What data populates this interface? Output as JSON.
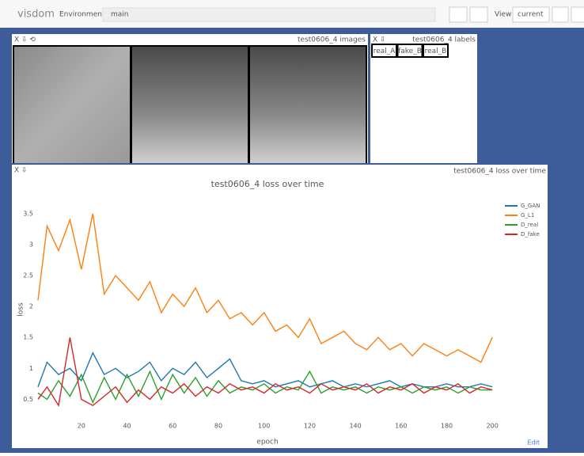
{
  "header": {
    "brand": "visdom",
    "env_label": "Environment",
    "env_value": "main",
    "view_label": "View",
    "view_value": "current"
  },
  "images_pane": {
    "title": "test0606_4 images"
  },
  "labels_pane": {
    "title": "test0606_4 labels",
    "labels": [
      "real_A",
      "fake_B",
      "real_B"
    ]
  },
  "loss_pane": {
    "title": "test0606_4 loss over time",
    "edit": "Edit"
  },
  "chart_data": {
    "type": "line",
    "title": "test0606_4 loss over time",
    "x_label": "epoch",
    "y_label": "loss",
    "x": [
      1,
      5,
      10,
      15,
      20,
      25,
      30,
      35,
      40,
      45,
      50,
      55,
      60,
      65,
      70,
      75,
      80,
      85,
      90,
      95,
      100,
      105,
      110,
      115,
      120,
      125,
      130,
      135,
      140,
      145,
      150,
      155,
      160,
      165,
      170,
      175,
      180,
      185,
      190,
      195,
      200
    ],
    "xlim": [
      1,
      202
    ],
    "xticks": [
      20,
      40,
      60,
      80,
      100,
      120,
      140,
      160,
      180,
      200
    ],
    "ylim": [
      0.3,
      3.6
    ],
    "yticks": [
      0.5,
      1,
      1.5,
      2,
      2.5,
      3,
      3.5
    ],
    "grid": false,
    "legend": "top-right",
    "series": [
      {
        "name": "G_GAN",
        "color": "#1f77b4",
        "values": [
          0.7,
          1.1,
          0.9,
          1.0,
          0.8,
          1.25,
          0.9,
          1.0,
          0.85,
          0.95,
          1.1,
          0.8,
          1.0,
          0.9,
          1.1,
          0.85,
          1.0,
          1.15,
          0.8,
          0.75,
          0.8,
          0.7,
          0.75,
          0.8,
          0.7,
          0.75,
          0.8,
          0.7,
          0.75,
          0.7,
          0.75,
          0.8,
          0.7,
          0.75,
          0.7,
          0.7,
          0.75,
          0.7,
          0.7,
          0.75,
          0.7
        ]
      },
      {
        "name": "G_L1",
        "color": "#ff7f0e",
        "values": [
          2.1,
          3.3,
          2.9,
          3.4,
          2.6,
          3.5,
          2.2,
          2.5,
          2.3,
          2.1,
          2.4,
          1.9,
          2.2,
          2.0,
          2.3,
          1.9,
          2.1,
          1.8,
          1.9,
          1.7,
          1.9,
          1.6,
          1.7,
          1.5,
          1.8,
          1.4,
          1.5,
          1.6,
          1.4,
          1.3,
          1.5,
          1.3,
          1.4,
          1.2,
          1.4,
          1.3,
          1.2,
          1.3,
          1.2,
          1.1,
          1.5
        ]
      },
      {
        "name": "D_real",
        "color": "#2ca02c",
        "values": [
          0.6,
          0.5,
          0.8,
          0.55,
          0.9,
          0.45,
          0.85,
          0.5,
          0.9,
          0.55,
          0.95,
          0.5,
          0.9,
          0.6,
          0.85,
          0.55,
          0.8,
          0.6,
          0.7,
          0.65,
          0.75,
          0.6,
          0.7,
          0.65,
          0.95,
          0.6,
          0.7,
          0.65,
          0.7,
          0.6,
          0.7,
          0.65,
          0.7,
          0.6,
          0.7,
          0.65,
          0.7,
          0.6,
          0.7,
          0.65,
          0.65
        ]
      },
      {
        "name": "D_fake",
        "color": "#d62728",
        "values": [
          0.5,
          0.7,
          0.4,
          1.5,
          0.5,
          0.4,
          0.55,
          0.7,
          0.45,
          0.65,
          0.5,
          0.7,
          0.6,
          0.75,
          0.55,
          0.7,
          0.6,
          0.75,
          0.65,
          0.7,
          0.6,
          0.75,
          0.65,
          0.7,
          0.6,
          0.75,
          0.65,
          0.7,
          0.65,
          0.75,
          0.6,
          0.7,
          0.65,
          0.75,
          0.6,
          0.7,
          0.65,
          0.75,
          0.6,
          0.7,
          0.65
        ]
      }
    ]
  }
}
